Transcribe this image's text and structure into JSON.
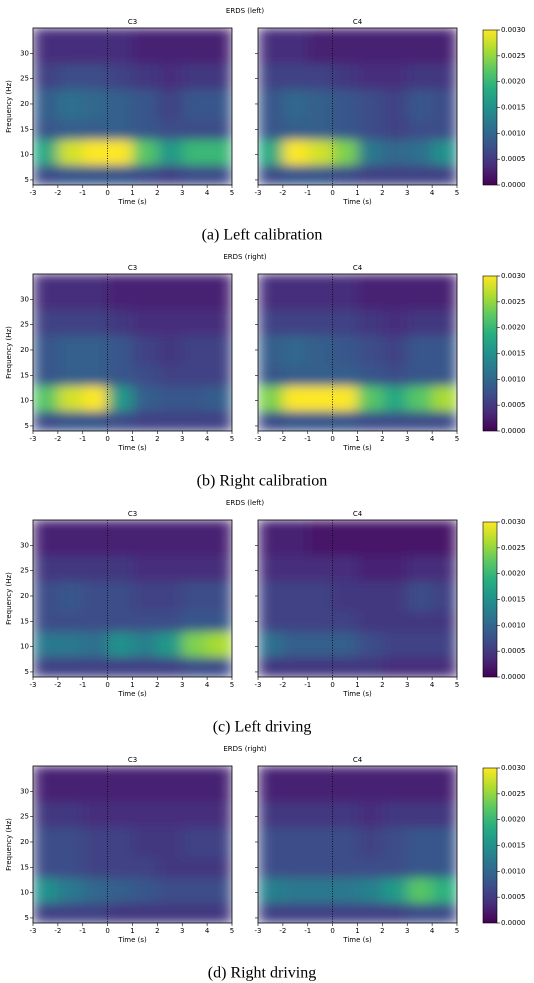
{
  "chart_data": [
    {
      "type": "heatmap",
      "title": "ERDS (left)",
      "caption": "(a) Left calibration",
      "xlabel": "Time (s)",
      "ylabel": "Frequency (Hz)",
      "xlim": [
        -3,
        5
      ],
      "ylim": [
        4,
        35
      ],
      "xticks": [
        -3,
        -2,
        -1,
        0,
        1,
        2,
        3,
        4,
        5
      ],
      "yticks": [
        5,
        10,
        15,
        20,
        25,
        30
      ],
      "x_bins": [
        -3,
        -2,
        -1,
        0,
        1,
        2,
        3,
        4,
        5
      ],
      "y_bins": [
        4,
        8,
        13,
        17,
        23,
        28,
        35
      ],
      "event_line": 0,
      "colormap": "viridis",
      "colorbar": {
        "lim": [
          0,
          0.003
        ],
        "ticks": [
          {
            "value": 0,
            "label": "0.0000"
          },
          {
            "value": 0.0005,
            "label": "0.0005"
          },
          {
            "value": 0.001,
            "label": "0.0010"
          },
          {
            "value": 0.0015,
            "label": "0.0015"
          },
          {
            "value": 0.002,
            "label": "0.0020"
          },
          {
            "value": 0.0025,
            "label": "0.0025"
          },
          {
            "value": 0.003,
            "label": "0.0030"
          }
        ]
      },
      "panels": [
        {
          "title": "C3",
          "values": [
            [
              0.0007,
              0.0008,
              0.0008,
              0.0008,
              0.0007,
              0.0006,
              0.0007,
              0.0007
            ],
            [
              0.0018,
              0.0028,
              0.003,
              0.003,
              0.0022,
              0.0016,
              0.002,
              0.002
            ],
            [
              0.0008,
              0.0009,
              0.0009,
              0.0009,
              0.0008,
              0.0007,
              0.0007,
              0.0007
            ],
            [
              0.0009,
              0.0011,
              0.001,
              0.0009,
              0.0008,
              0.0006,
              0.0008,
              0.0008
            ],
            [
              0.0006,
              0.0007,
              0.0007,
              0.0006,
              0.0005,
              0.0004,
              0.0005,
              0.0005
            ],
            [
              0.0004,
              0.0004,
              0.0004,
              0.0004,
              0.0003,
              0.0003,
              0.0003,
              0.0003
            ]
          ]
        },
        {
          "title": "C4",
          "values": [
            [
              0.0007,
              0.0008,
              0.0008,
              0.0007,
              0.0006,
              0.0006,
              0.0006,
              0.0006
            ],
            [
              0.0018,
              0.003,
              0.0028,
              0.0024,
              0.0012,
              0.001,
              0.0011,
              0.0015
            ],
            [
              0.0008,
              0.0009,
              0.0009,
              0.0008,
              0.0007,
              0.0006,
              0.0007,
              0.0007
            ],
            [
              0.0008,
              0.001,
              0.0009,
              0.0008,
              0.0007,
              0.0006,
              0.0008,
              0.0007
            ],
            [
              0.0006,
              0.0006,
              0.0006,
              0.0005,
              0.0004,
              0.0004,
              0.0005,
              0.0005
            ],
            [
              0.0004,
              0.0004,
              0.0003,
              0.0003,
              0.0003,
              0.0003,
              0.0003,
              0.0003
            ]
          ]
        }
      ]
    },
    {
      "type": "heatmap",
      "title": "ERDS (right)",
      "caption": "(b) Right calibration",
      "xlabel": "Time (s)",
      "ylabel": "Frequency (Hz)",
      "xlim": [
        -3,
        5
      ],
      "ylim": [
        4,
        35
      ],
      "xticks": [
        -3,
        -2,
        -1,
        0,
        1,
        2,
        3,
        4,
        5
      ],
      "yticks": [
        5,
        10,
        15,
        20,
        25,
        30
      ],
      "x_bins": [
        -3,
        -2,
        -1,
        0,
        1,
        2,
        3,
        4,
        5
      ],
      "y_bins": [
        4,
        8,
        13,
        17,
        23,
        28,
        35
      ],
      "event_line": 0,
      "colormap": "viridis",
      "colorbar": {
        "lim": [
          0,
          0.003
        ],
        "ticks": [
          {
            "value": 0,
            "label": "0.0000"
          },
          {
            "value": 0.0005,
            "label": "0.0005"
          },
          {
            "value": 0.001,
            "label": "0.0010"
          },
          {
            "value": 0.0015,
            "label": "0.0015"
          },
          {
            "value": 0.002,
            "label": "0.0020"
          },
          {
            "value": 0.0025,
            "label": "0.0025"
          },
          {
            "value": 0.003,
            "label": "0.0030"
          }
        ]
      },
      "panels": [
        {
          "title": "C3",
          "values": [
            [
              0.0007,
              0.0008,
              0.0008,
              0.0007,
              0.0006,
              0.0006,
              0.0006,
              0.0006
            ],
            [
              0.0022,
              0.0028,
              0.003,
              0.0016,
              0.0009,
              0.0008,
              0.0008,
              0.0009
            ],
            [
              0.0008,
              0.0009,
              0.0009,
              0.0008,
              0.0007,
              0.0006,
              0.0006,
              0.0006
            ],
            [
              0.0008,
              0.0009,
              0.0009,
              0.0008,
              0.0006,
              0.0005,
              0.0006,
              0.0006
            ],
            [
              0.0006,
              0.0006,
              0.0006,
              0.0005,
              0.0004,
              0.0004,
              0.0004,
              0.0004
            ],
            [
              0.0004,
              0.0004,
              0.0004,
              0.0003,
              0.0003,
              0.0003,
              0.0003,
              0.0003
            ]
          ]
        },
        {
          "title": "C4",
          "values": [
            [
              0.0007,
              0.0008,
              0.0008,
              0.0008,
              0.0007,
              0.0007,
              0.0007,
              0.0007
            ],
            [
              0.0024,
              0.003,
              0.003,
              0.003,
              0.0022,
              0.0018,
              0.0022,
              0.0026
            ],
            [
              0.0008,
              0.0009,
              0.0009,
              0.0009,
              0.0008,
              0.0007,
              0.0008,
              0.0008
            ],
            [
              0.0009,
              0.001,
              0.0009,
              0.0008,
              0.0007,
              0.0006,
              0.0008,
              0.0008
            ],
            [
              0.0006,
              0.0006,
              0.0006,
              0.0006,
              0.0005,
              0.0004,
              0.0005,
              0.0005
            ],
            [
              0.0004,
              0.0004,
              0.0004,
              0.0004,
              0.0003,
              0.0003,
              0.0003,
              0.0003
            ]
          ]
        }
      ]
    },
    {
      "type": "heatmap",
      "title": "ERDS (left)",
      "caption": "(c) Left driving",
      "xlabel": "Time (s)",
      "ylabel": "Frequency (Hz)",
      "xlim": [
        -3,
        5
      ],
      "ylim": [
        4,
        35
      ],
      "xticks": [
        -3,
        -2,
        -1,
        0,
        1,
        2,
        3,
        4,
        5
      ],
      "yticks": [
        5,
        10,
        15,
        20,
        25,
        30
      ],
      "x_bins": [
        -3,
        -2,
        -1,
        0,
        1,
        2,
        3,
        4,
        5
      ],
      "y_bins": [
        4,
        8,
        13,
        17,
        23,
        28,
        35
      ],
      "event_line": 0,
      "colormap": "viridis",
      "colorbar": {
        "lim": [
          0,
          0.003
        ],
        "ticks": [
          {
            "value": 0,
            "label": "0.0000"
          },
          {
            "value": 0.0005,
            "label": "0.0005"
          },
          {
            "value": 0.001,
            "label": "0.0010"
          },
          {
            "value": 0.0015,
            "label": "0.0015"
          },
          {
            "value": 0.002,
            "label": "0.0020"
          },
          {
            "value": 0.0025,
            "label": "0.0025"
          },
          {
            "value": 0.003,
            "label": "0.0030"
          }
        ]
      },
      "panels": [
        {
          "title": "C3",
          "values": [
            [
              0.0006,
              0.0006,
              0.0006,
              0.0006,
              0.0006,
              0.0006,
              0.0007,
              0.0007
            ],
            [
              0.0012,
              0.0012,
              0.0011,
              0.0015,
              0.0013,
              0.0016,
              0.0024,
              0.0026
            ],
            [
              0.0007,
              0.0007,
              0.0007,
              0.0007,
              0.0007,
              0.0007,
              0.0008,
              0.0008
            ],
            [
              0.0007,
              0.0008,
              0.0007,
              0.0007,
              0.0006,
              0.0006,
              0.0007,
              0.0007
            ],
            [
              0.0005,
              0.0005,
              0.0005,
              0.0005,
              0.0004,
              0.0004,
              0.0004,
              0.0004
            ],
            [
              0.0003,
              0.0003,
              0.0003,
              0.0003,
              0.0003,
              0.0003,
              0.0003,
              0.0003
            ]
          ]
        },
        {
          "title": "C4",
          "values": [
            [
              0.0005,
              0.0005,
              0.0005,
              0.0005,
              0.0005,
              0.0004,
              0.0004,
              0.0004
            ],
            [
              0.0011,
              0.0009,
              0.0009,
              0.0009,
              0.0007,
              0.0006,
              0.0006,
              0.0006
            ],
            [
              0.0006,
              0.0006,
              0.0006,
              0.0006,
              0.0005,
              0.0005,
              0.0005,
              0.0005
            ],
            [
              0.0006,
              0.0006,
              0.0006,
              0.0005,
              0.0005,
              0.0005,
              0.0007,
              0.0006
            ],
            [
              0.0004,
              0.0004,
              0.0004,
              0.0004,
              0.0003,
              0.0003,
              0.0004,
              0.0004
            ],
            [
              0.0003,
              0.0003,
              0.0002,
              0.0002,
              0.0002,
              0.0002,
              0.0002,
              0.0002
            ]
          ]
        }
      ]
    },
    {
      "type": "heatmap",
      "title": "ERDS (right)",
      "caption": "(d) Right driving",
      "xlabel": "Time (s)",
      "ylabel": "Frequency (Hz)",
      "xlim": [
        -3,
        5
      ],
      "ylim": [
        4,
        35
      ],
      "xticks": [
        -3,
        -2,
        -1,
        0,
        1,
        2,
        3,
        4,
        5
      ],
      "yticks": [
        5,
        10,
        15,
        20,
        25,
        30
      ],
      "x_bins": [
        -3,
        -2,
        -1,
        0,
        1,
        2,
        3,
        4,
        5
      ],
      "y_bins": [
        4,
        8,
        13,
        17,
        23,
        28,
        35
      ],
      "event_line": 0,
      "colormap": "viridis",
      "colorbar": {
        "lim": [
          0,
          0.003
        ],
        "ticks": [
          {
            "value": 0,
            "label": "0.0000"
          },
          {
            "value": 0.0005,
            "label": "0.0005"
          },
          {
            "value": 0.001,
            "label": "0.0010"
          },
          {
            "value": 0.0015,
            "label": "0.0015"
          },
          {
            "value": 0.002,
            "label": "0.0020"
          },
          {
            "value": 0.0025,
            "label": "0.0025"
          },
          {
            "value": 0.003,
            "label": "0.0030"
          }
        ]
      },
      "panels": [
        {
          "title": "C3",
          "values": [
            [
              0.0006,
              0.0006,
              0.0006,
              0.0005,
              0.0005,
              0.0005,
              0.0005,
              0.0005
            ],
            [
              0.0015,
              0.0012,
              0.001,
              0.0009,
              0.0008,
              0.0007,
              0.0007,
              0.0007
            ],
            [
              0.0007,
              0.0007,
              0.0006,
              0.0006,
              0.0006,
              0.0005,
              0.0005,
              0.0005
            ],
            [
              0.0007,
              0.0007,
              0.0006,
              0.0006,
              0.0005,
              0.0005,
              0.0006,
              0.0006
            ],
            [
              0.0005,
              0.0005,
              0.0004,
              0.0004,
              0.0004,
              0.0004,
              0.0004,
              0.0004
            ],
            [
              0.0003,
              0.0003,
              0.0003,
              0.0003,
              0.0003,
              0.0003,
              0.0003,
              0.0003
            ]
          ]
        },
        {
          "title": "C4",
          "values": [
            [
              0.0006,
              0.0006,
              0.0006,
              0.0006,
              0.0006,
              0.0006,
              0.0007,
              0.0007
            ],
            [
              0.0013,
              0.0012,
              0.0012,
              0.0012,
              0.0013,
              0.0016,
              0.0022,
              0.0019
            ],
            [
              0.0007,
              0.0007,
              0.0007,
              0.0007,
              0.0007,
              0.0007,
              0.0008,
              0.0008
            ],
            [
              0.0007,
              0.0007,
              0.0007,
              0.0007,
              0.0006,
              0.0007,
              0.0008,
              0.0008
            ],
            [
              0.0005,
              0.0005,
              0.0005,
              0.0005,
              0.0004,
              0.0005,
              0.0005,
              0.0005
            ],
            [
              0.0003,
              0.0003,
              0.0003,
              0.0003,
              0.0003,
              0.0003,
              0.0003,
              0.0003
            ]
          ]
        }
      ]
    }
  ]
}
